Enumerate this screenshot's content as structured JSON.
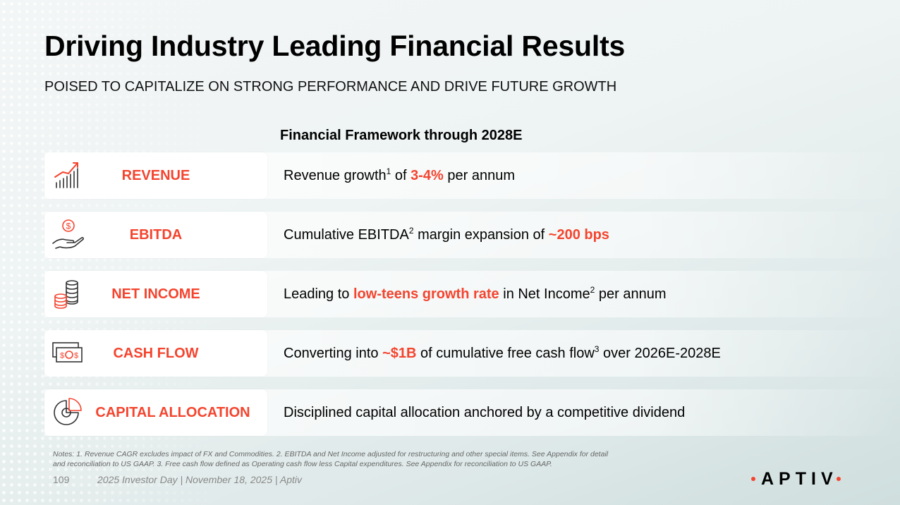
{
  "header": {
    "title": "Driving Industry Leading Financial Results",
    "subtitle": "POISED TO CAPITALIZE ON STRONG PERFORMANCE AND DRIVE FUTURE GROWTH"
  },
  "framework_title": "Financial Framework through 2028E",
  "rows": [
    {
      "label": "REVENUE",
      "icon": "growth-chart-icon",
      "desc": {
        "a": "Revenue growth",
        "sup": "1",
        "b": " of ",
        "hl": "3-4%",
        "c": " per annum"
      }
    },
    {
      "label": "EBITDA",
      "icon": "hand-dollar-icon",
      "desc": {
        "a": "Cumulative EBITDA",
        "sup": "2",
        "b": " margin expansion of ",
        "hl": "~200 bps"
      }
    },
    {
      "label": "NET INCOME",
      "icon": "coin-stacks-icon",
      "desc": {
        "a": "Leading to ",
        "hl": "low-teens growth rate",
        "b": " in Net Income",
        "sup": "2",
        "c": " per annum"
      }
    },
    {
      "label": "CASH FLOW",
      "icon": "banknotes-icon",
      "desc": {
        "a": "Converting into ",
        "hl": "~$1B",
        "b": " of cumulative free cash flow",
        "sup": "3",
        "c": " over 2026E-2028E"
      }
    },
    {
      "label": "CAPITAL ALLOCATION",
      "icon": "pie-chart-icon",
      "desc": {
        "a": "Disciplined capital allocation anchored by a competitive dividend"
      }
    }
  ],
  "footer": {
    "notes": "Notes: 1. Revenue CAGR excludes impact of FX and Commodities. 2. EBITDA and Net Income adjusted for restructuring and other special items. See Appendix for detail and reconciliation to US GAAP. 3. Free cash flow defined as Operating cash flow less Capital expenditures. See Appendix for reconciliation to US GAAP.",
    "page_number": "109",
    "event": "2025 Investor Day | November 18, 2025 | Aptiv",
    "logo_text": "APTIV"
  },
  "colors": {
    "accent": "#f4442e",
    "text": "#000000"
  }
}
